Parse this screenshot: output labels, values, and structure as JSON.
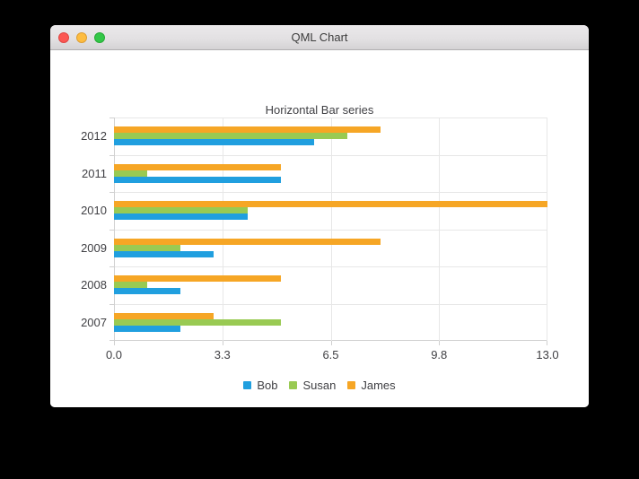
{
  "window": {
    "title": "QML Chart"
  },
  "chart_data": {
    "type": "bar",
    "orientation": "horizontal",
    "title": "Horizontal Bar series",
    "categories": [
      "2007",
      "2008",
      "2009",
      "2010",
      "2011",
      "2012"
    ],
    "categories_display_top_to_bottom": [
      "2012",
      "2011",
      "2010",
      "2009",
      "2008",
      "2007"
    ],
    "series": [
      {
        "name": "Bob",
        "color": "#209fdf",
        "values": [
          2,
          2,
          3,
          4,
          5,
          6
        ]
      },
      {
        "name": "Susan",
        "color": "#99ca53",
        "values": [
          5,
          1,
          2,
          4,
          1,
          7
        ]
      },
      {
        "name": "James",
        "color": "#f6a625",
        "values": [
          3,
          5,
          8,
          13,
          5,
          8
        ]
      }
    ],
    "bar_order_top_to_bottom": [
      "James",
      "Susan",
      "Bob"
    ],
    "xlim": [
      0,
      13
    ],
    "x_ticks": [
      0,
      3.25,
      6.5,
      9.75,
      13
    ],
    "x_tick_labels": [
      "0.0",
      "3.3",
      "6.5",
      "9.8",
      "13.0"
    ],
    "grid": true,
    "legend": {
      "position": "bottom",
      "entries": [
        "Bob",
        "Susan",
        "James"
      ]
    },
    "colors": {
      "grid_line": "#e7e7e7",
      "axis_line": "#d0d0d0",
      "text": "#404044",
      "plot_background": "#ffffff"
    }
  }
}
